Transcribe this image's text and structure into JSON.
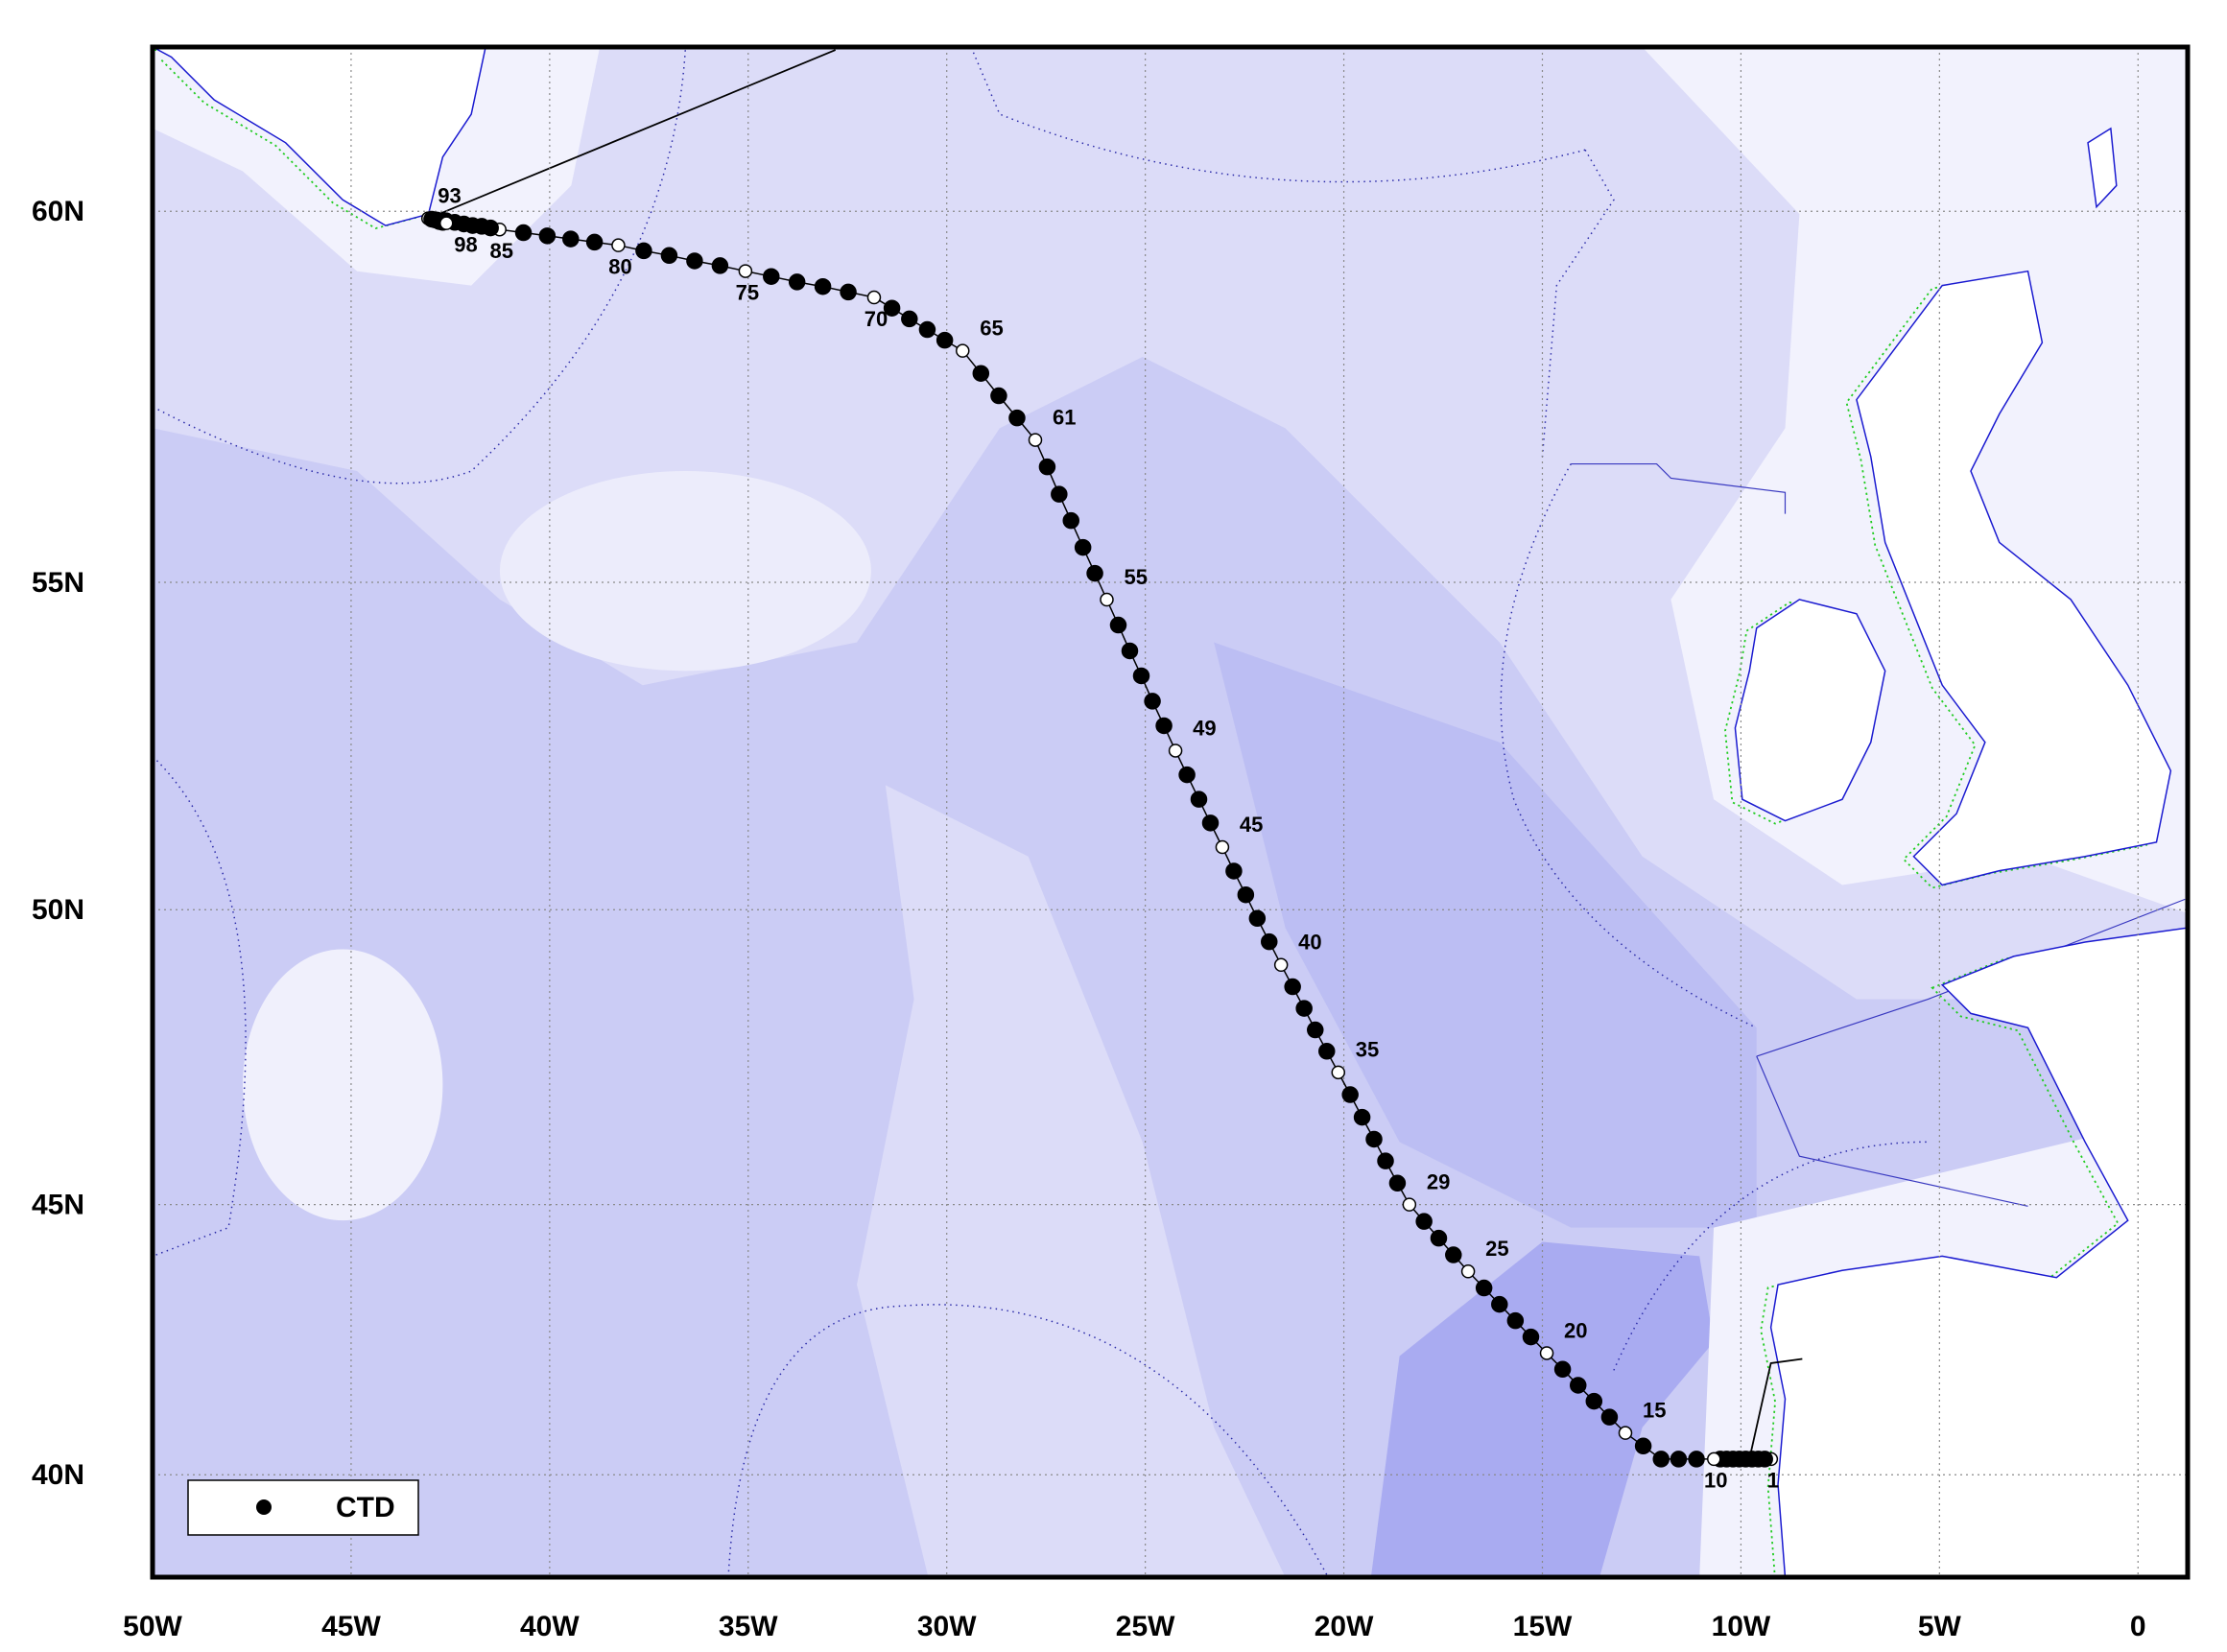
{
  "chart_data": {
    "type": "map",
    "projection": "mercator",
    "xlim": [
      -50,
      1.25
    ],
    "ylim": [
      38,
      62
    ],
    "grid": true,
    "xticks": [
      {
        "value": -50,
        "label": "50W"
      },
      {
        "value": -45,
        "label": "45W"
      },
      {
        "value": -40,
        "label": "40W"
      },
      {
        "value": -35,
        "label": "35W"
      },
      {
        "value": -30,
        "label": "30W"
      },
      {
        "value": -25,
        "label": "25W"
      },
      {
        "value": -20,
        "label": "20W"
      },
      {
        "value": -15,
        "label": "15W"
      },
      {
        "value": -10,
        "label": "10W"
      },
      {
        "value": -5,
        "label": "5W"
      },
      0
    ],
    "yticks": [
      {
        "value": 40,
        "label": "40N"
      },
      {
        "value": 45,
        "label": "45N"
      },
      {
        "value": 50,
        "label": "50N"
      },
      {
        "value": 55,
        "label": "55N"
      },
      {
        "value": 60,
        "label": "60N"
      }
    ],
    "legend": "lower left",
    "series": [
      {
        "name": "CTD",
        "color": "#000000",
        "lon": [
          -9.24,
          -9.4,
          -9.56,
          -9.72,
          -9.88,
          -10.04,
          -10.2,
          -10.36,
          -10.52,
          -10.68,
          -11.12,
          -11.57,
          -12.01,
          -12.46,
          -12.91,
          -13.31,
          -13.7,
          -14.1,
          -14.49,
          -14.89,
          -15.29,
          -15.68,
          -16.08,
          -16.47,
          -16.87,
          -17.24,
          -17.61,
          -17.98,
          -18.35,
          -18.65,
          -18.95,
          -19.24,
          -19.54,
          -19.84,
          -20.14,
          -20.43,
          -20.72,
          -21.0,
          -21.29,
          -21.58,
          -21.88,
          -22.18,
          -22.47,
          -22.77,
          -23.06,
          -23.36,
          -23.65,
          -23.95,
          -24.24,
          -24.53,
          -24.82,
          -25.1,
          -25.39,
          -25.68,
          -25.97,
          -26.27,
          -26.57,
          -26.87,
          -27.17,
          -27.47,
          -27.77,
          -28.23,
          -28.69,
          -29.14,
          -29.6,
          -30.05,
          -30.49,
          -30.94,
          -31.38,
          -31.83,
          -32.48,
          -33.12,
          -33.77,
          -34.42,
          -35.07,
          -35.71,
          -36.35,
          -36.99,
          -37.63,
          -38.27,
          -38.87,
          -39.47,
          -40.06,
          -40.66,
          -41.26,
          -41.49,
          -41.71,
          -41.94,
          -42.16,
          -42.39,
          -42.61,
          -42.84,
          -43.06,
          -42.97,
          -42.88,
          -42.78,
          -42.69,
          -42.6
        ],
        "lat": [
          40.3,
          40.3,
          40.3,
          40.3,
          40.3,
          40.3,
          40.3,
          40.3,
          40.3,
          40.3,
          40.3,
          40.3,
          40.3,
          40.55,
          40.8,
          41.1,
          41.4,
          41.7,
          42.0,
          42.3,
          42.6,
          42.9,
          43.2,
          43.5,
          43.8,
          44.1,
          44.4,
          44.7,
          45.0,
          45.38,
          45.77,
          46.15,
          46.53,
          46.92,
          47.3,
          47.66,
          48.02,
          48.38,
          48.74,
          49.1,
          49.48,
          49.86,
          50.24,
          50.62,
          51.0,
          51.38,
          51.75,
          52.13,
          52.5,
          52.88,
          53.25,
          53.63,
          54.0,
          54.38,
          54.75,
          55.13,
          55.5,
          55.88,
          56.25,
          56.63,
          57.0,
          57.3,
          57.6,
          57.9,
          58.2,
          58.34,
          58.48,
          58.62,
          58.76,
          58.9,
          58.97,
          59.04,
          59.1,
          59.17,
          59.24,
          59.31,
          59.37,
          59.44,
          59.5,
          59.57,
          59.61,
          59.65,
          59.69,
          59.73,
          59.77,
          59.79,
          59.81,
          59.82,
          59.84,
          59.86,
          59.88,
          59.89,
          59.91,
          59.9,
          59.89,
          59.87,
          59.86,
          59.85
        ],
        "labels": [
          "1",
          null,
          null,
          null,
          null,
          null,
          null,
          null,
          null,
          "10",
          null,
          null,
          null,
          null,
          "15",
          null,
          null,
          null,
          null,
          "20",
          null,
          null,
          null,
          null,
          "25",
          null,
          null,
          null,
          "29",
          null,
          null,
          null,
          null,
          null,
          "35",
          null,
          null,
          null,
          null,
          "40",
          null,
          null,
          null,
          null,
          "45",
          null,
          null,
          null,
          "49",
          null,
          null,
          null,
          null,
          null,
          "55",
          null,
          null,
          null,
          null,
          null,
          "61",
          null,
          null,
          null,
          "65",
          null,
          null,
          null,
          null,
          "70",
          null,
          null,
          null,
          null,
          "75",
          null,
          null,
          null,
          null,
          "80",
          null,
          null,
          null,
          null,
          "85",
          null,
          null,
          null,
          null,
          null,
          null,
          null,
          "93",
          null,
          null,
          null,
          null,
          "98"
        ]
      }
    ]
  }
}
